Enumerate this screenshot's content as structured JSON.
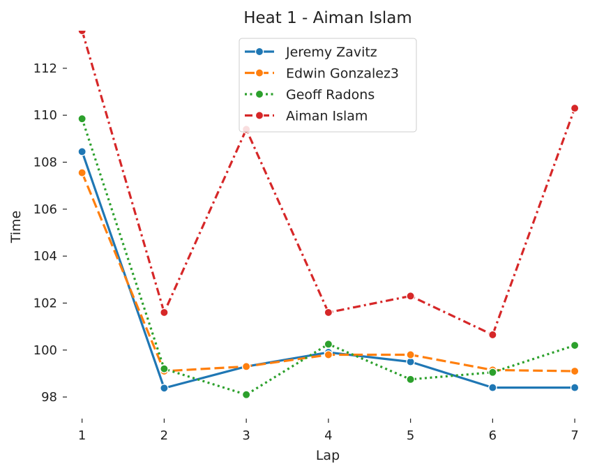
{
  "chart_data": {
    "type": "line",
    "title": "Heat 1 - Aiman Islam",
    "xlabel": "Lap",
    "ylabel": "Time",
    "x": [
      1,
      2,
      3,
      4,
      5,
      6,
      7
    ],
    "xlim": [
      0.85,
      7.05
    ],
    "ylim": [
      97.2,
      113.6
    ],
    "yticks": [
      98,
      100,
      102,
      104,
      106,
      108,
      110,
      112
    ],
    "grid": false,
    "legend_position": "top-center",
    "series": [
      {
        "name": "Jeremy Zavitz",
        "values": [
          108.45,
          98.38,
          99.3,
          99.9,
          99.5,
          98.4,
          98.4
        ],
        "color": "#1f77b4",
        "linestyle": "solid"
      },
      {
        "name": "Edwin Gonzalez3",
        "values": [
          107.55,
          99.1,
          99.3,
          99.8,
          99.8,
          99.15,
          99.1
        ],
        "color": "#ff7f0e",
        "linestyle": "dashed"
      },
      {
        "name": "Geoff Radons",
        "values": [
          109.85,
          99.2,
          98.1,
          100.25,
          98.75,
          99.05,
          100.2
        ],
        "color": "#2ca02c",
        "linestyle": "dotted"
      },
      {
        "name": "Aiman Islam",
        "values": [
          113.6,
          101.6,
          109.4,
          101.6,
          102.3,
          100.65,
          110.3
        ],
        "color": "#d62728",
        "linestyle": "dashdot"
      }
    ]
  }
}
